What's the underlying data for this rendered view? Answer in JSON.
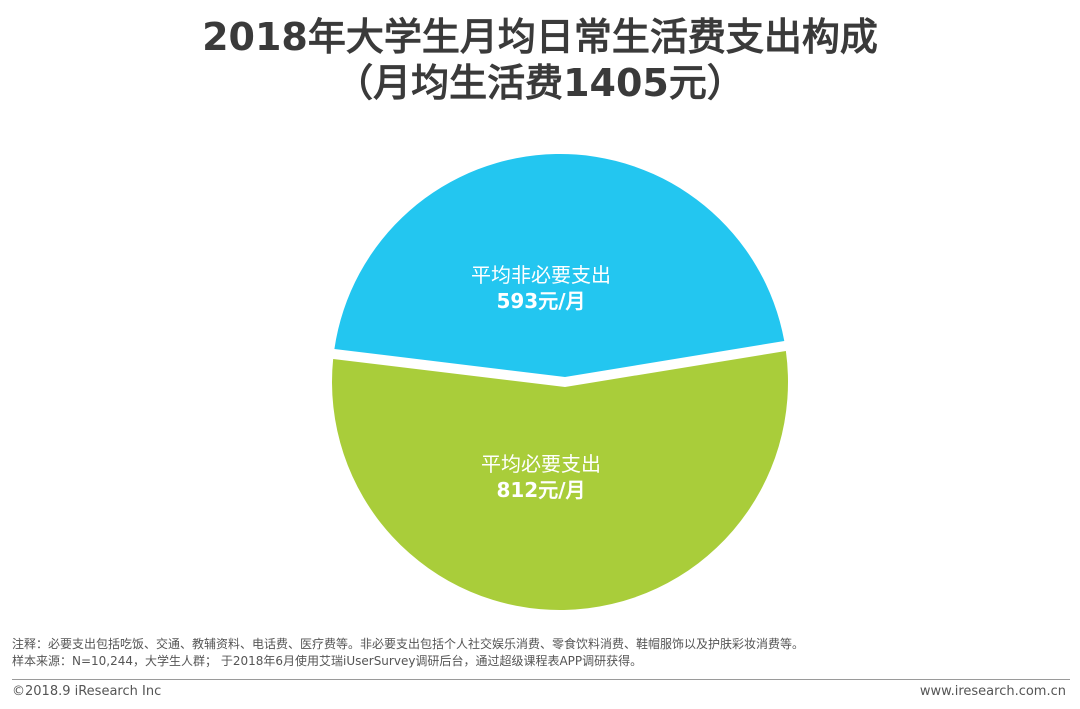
{
  "title": {
    "line1": "2018年大学生月均日常生活费支出构成",
    "line2": "（月均生活费1405元）"
  },
  "chart_data": {
    "type": "pie",
    "title": "2018年大学生月均日常生活费支出构成（月均生活费1405元）",
    "series": [
      {
        "name": "平均非必要支出",
        "value": 593,
        "value_label": "593元/月",
        "color": "#23c6f0"
      },
      {
        "name": "平均必要支出",
        "value": 812,
        "value_label": "812元/月",
        "color": "#a9cd3a"
      }
    ],
    "total": 1405
  },
  "notes": {
    "line1": "注释：必要支出包括吃饭、交通、教辅资料、电话费、医疗费等。非必要支出包括个人社交娱乐消费、零食饮料消费、鞋帽服饰以及护肤彩妆消费等。",
    "line2": "样本来源：N=10,244，大学生人群； 于2018年6月使用艾瑞iUserSurvey调研后台，通过超级课程表APP调研获得。"
  },
  "footer": {
    "copyright": "©2018.9 iResearch Inc",
    "website": "www.iresearch.com.cn"
  }
}
